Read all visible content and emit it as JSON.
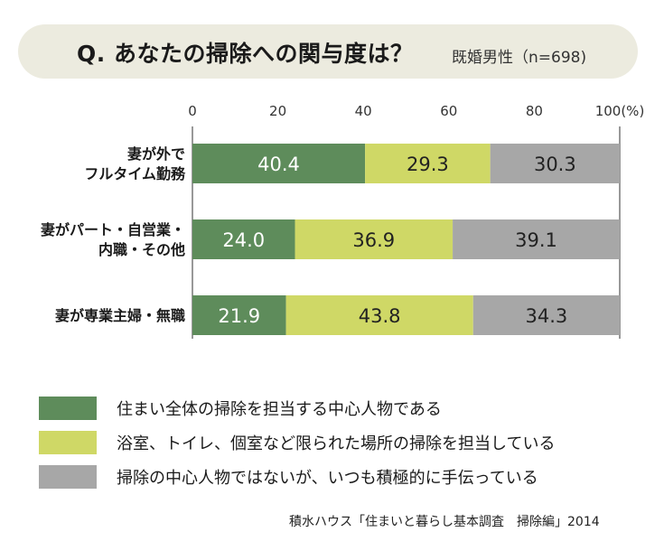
{
  "header": {
    "question": "Q. あなたの掃除への関与度は？",
    "sample": "既婚男性（n=698)"
  },
  "colors": {
    "banner": "#ecebdf",
    "series": [
      "#5e8c5b",
      "#cfd866",
      "#a7a7a7"
    ],
    "text_on_bar": "#ffffff",
    "text_on_light": "#222222"
  },
  "chart_data": {
    "type": "bar",
    "orientation": "horizontal",
    "stacked": true,
    "categories": [
      [
        "妻が外で",
        "フルタイム勤務"
      ],
      [
        "妻がパート・自営業・",
        "内職・その他"
      ],
      [
        "妻が専業主婦・無職"
      ]
    ],
    "series": [
      {
        "name": "住まい全体の掃除を担当する中心人物である",
        "values": [
          40.4,
          24.0,
          21.9
        ]
      },
      {
        "name": "浴室、トイレ、個室など限られた場所の掃除を担当している",
        "values": [
          29.3,
          36.9,
          43.8
        ]
      },
      {
        "name": "掃除の中心人物ではないが、いつも積極的に手伝っている",
        "values": [
          30.3,
          39.1,
          34.3
        ]
      }
    ],
    "xticks": [
      "0",
      "20",
      "40",
      "60",
      "80",
      "100(%)"
    ],
    "xlim": [
      0,
      100
    ],
    "legend_position": "bottom",
    "grid": false
  },
  "source": "積水ハウス「住まいと暮らし基本調査　掃除編」2014"
}
